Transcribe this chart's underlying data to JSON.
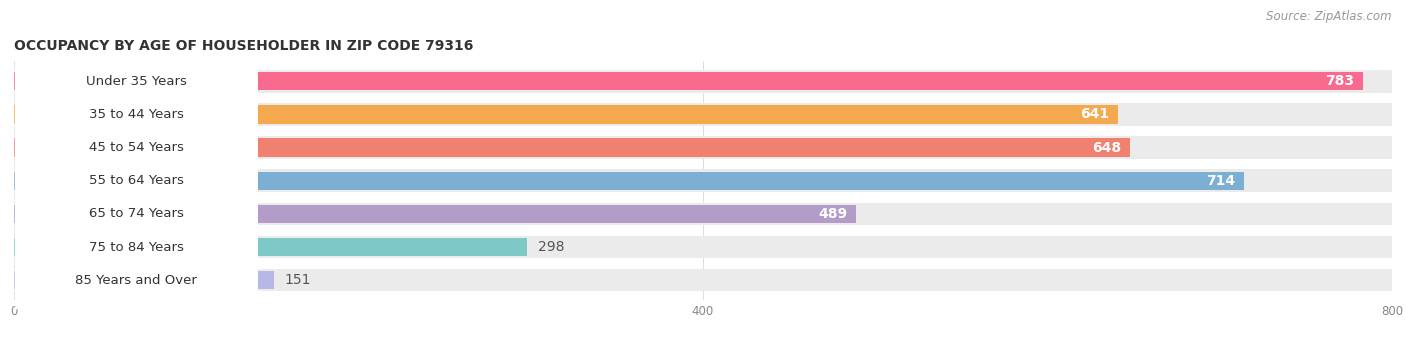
{
  "title": "OCCUPANCY BY AGE OF HOUSEHOLDER IN ZIP CODE 79316",
  "source": "Source: ZipAtlas.com",
  "categories": [
    "Under 35 Years",
    "35 to 44 Years",
    "45 to 54 Years",
    "55 to 64 Years",
    "65 to 74 Years",
    "75 to 84 Years",
    "85 Years and Over"
  ],
  "values": [
    783,
    641,
    648,
    714,
    489,
    298,
    151
  ],
  "bar_colors": [
    "#F96A8F",
    "#F5A94E",
    "#F08070",
    "#7BAFD4",
    "#B39CC8",
    "#7EC8C8",
    "#B8B8E8"
  ],
  "track_color": "#EBEBEB",
  "background_color": "#FFFFFF",
  "xlim": [
    0,
    800
  ],
  "xticks": [
    0,
    400,
    800
  ],
  "title_fontsize": 10,
  "source_fontsize": 8.5,
  "bar_label_fontsize": 10,
  "category_fontsize": 9.5
}
